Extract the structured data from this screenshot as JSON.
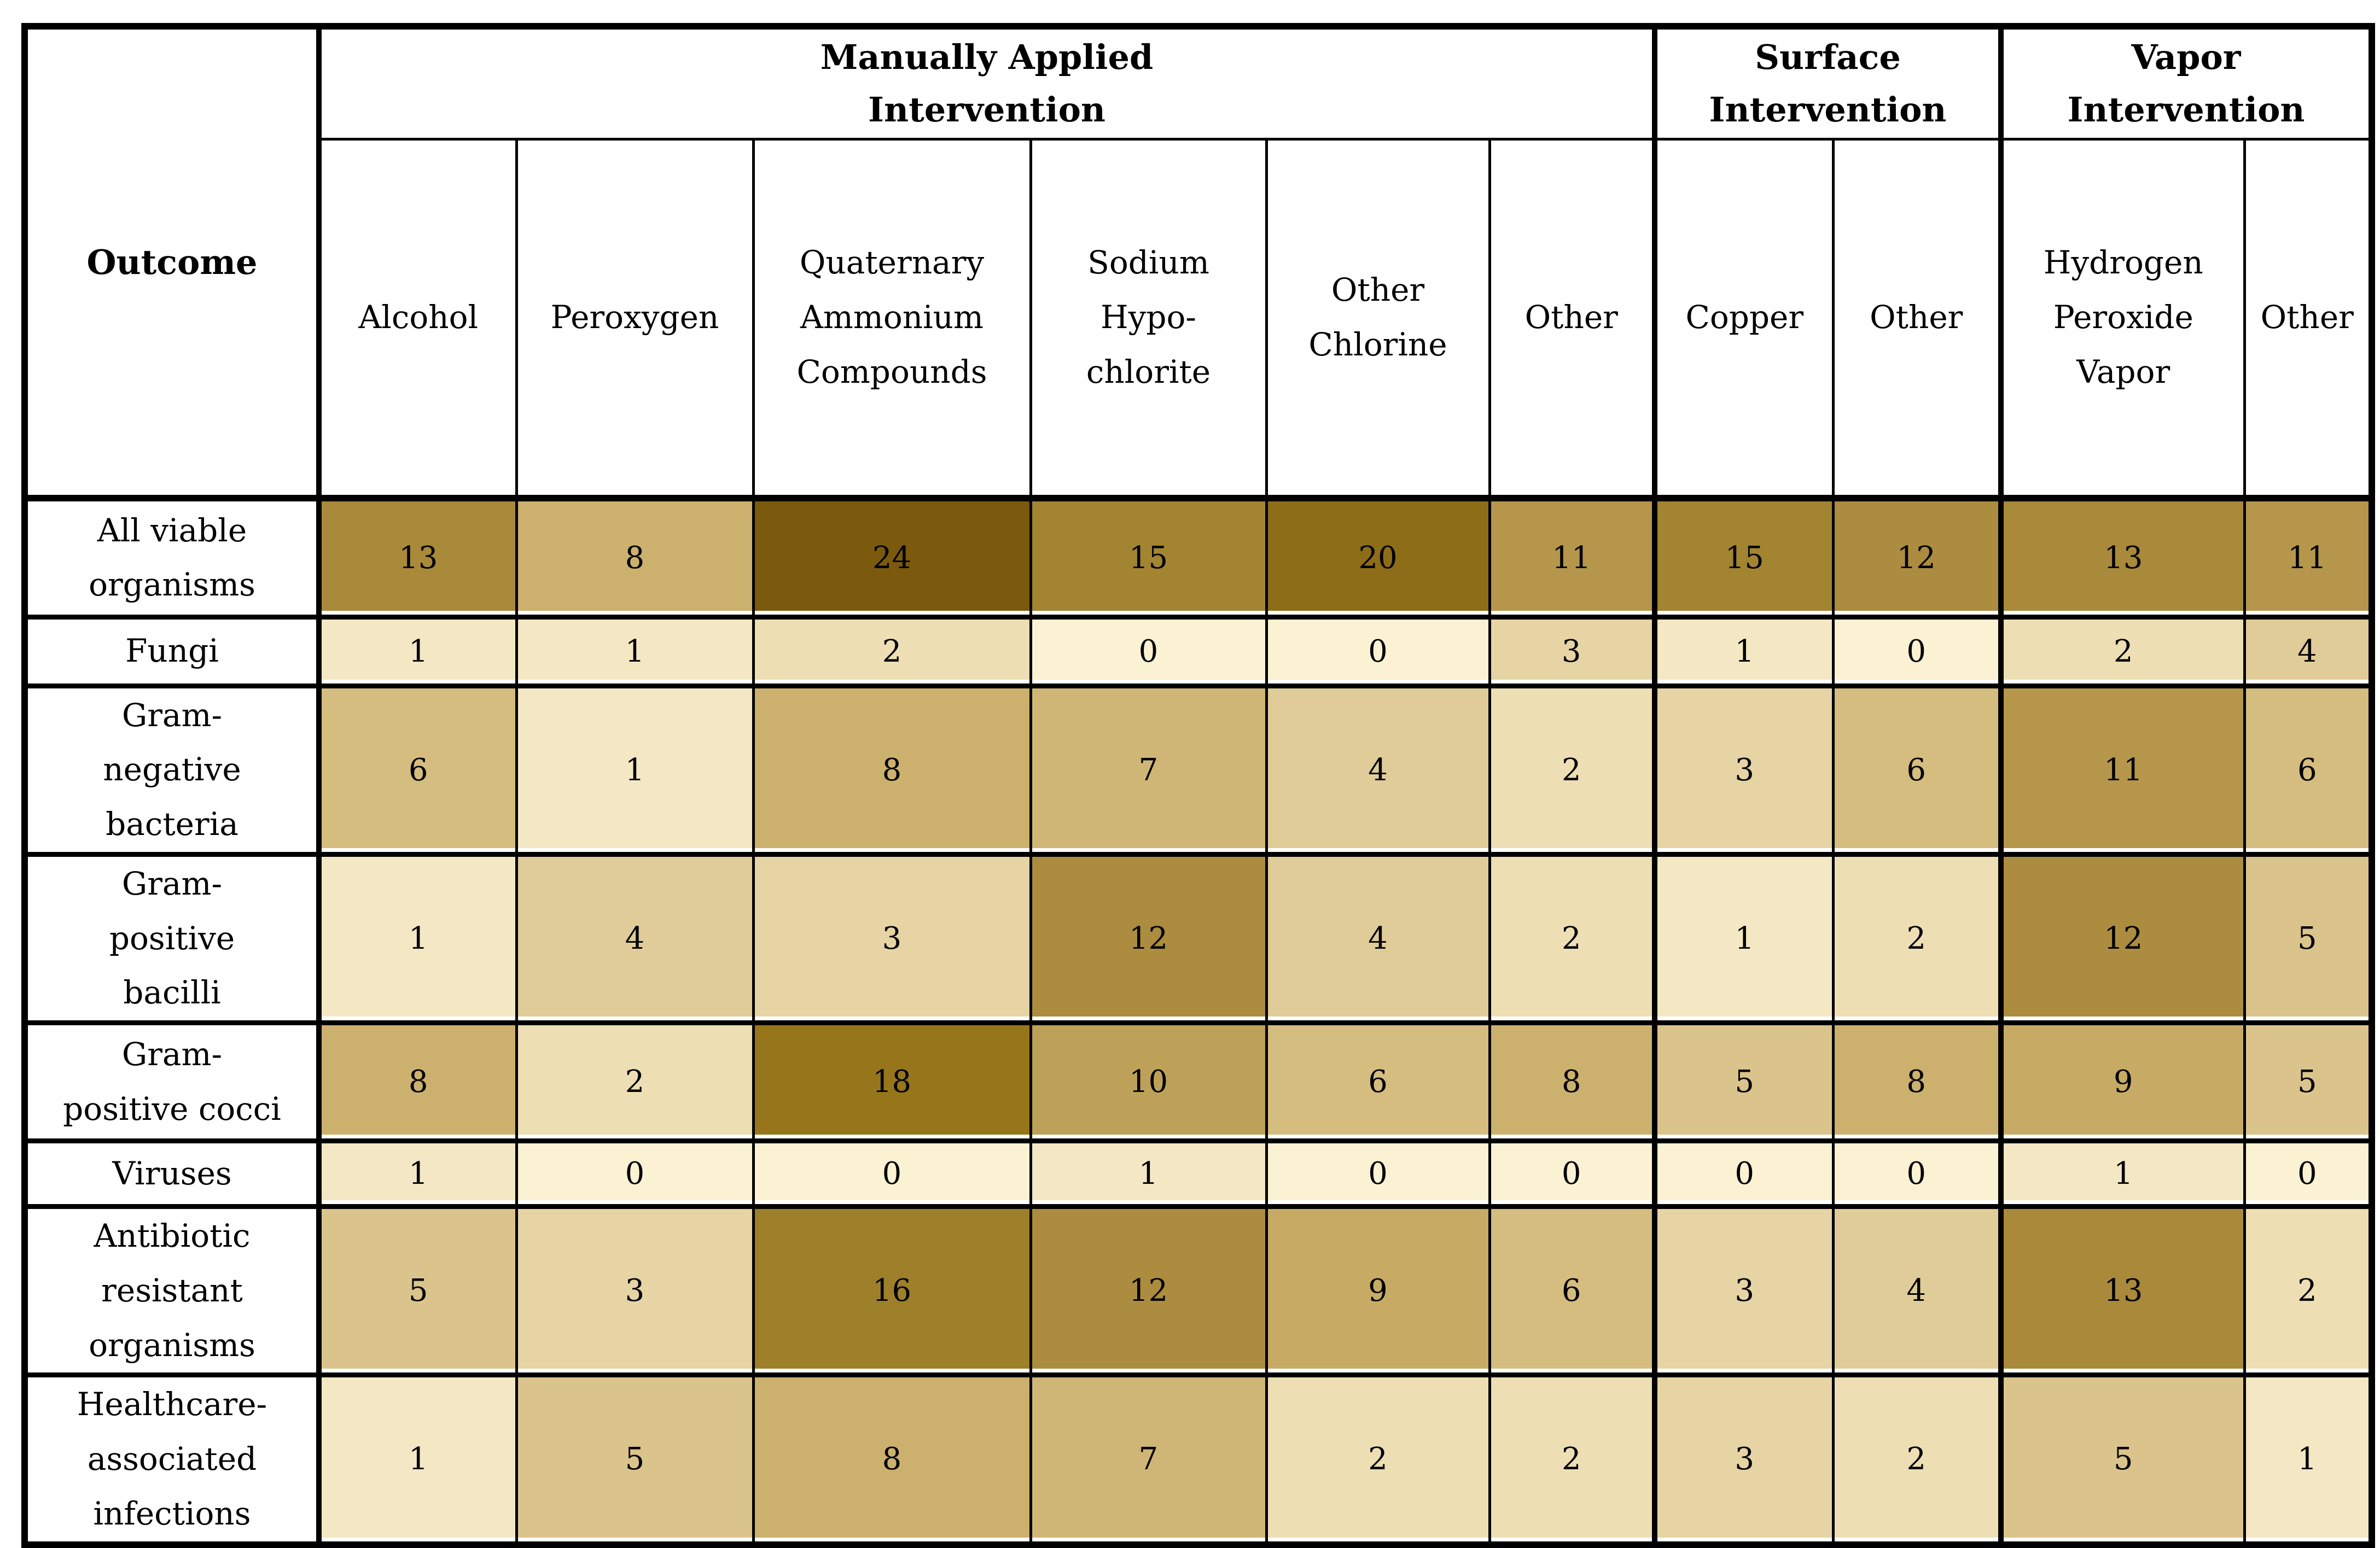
{
  "page": {
    "background": "#ffffff"
  },
  "table": {
    "corner_label": "Outcome"
  },
  "chart_data": {
    "type": "heatmap",
    "title": "",
    "corner_label": "Outcome",
    "column_groups": [
      {
        "label": "Manually Applied\nIntervention",
        "columns": [
          "Alcohol",
          "Peroxygen",
          "Quaternary\nAmmonium\nCompounds",
          "Sodium\nHypo-\nchlorite",
          "Other\nChlorine",
          "Other"
        ]
      },
      {
        "label": "Surface\nIntervention",
        "columns": [
          "Copper",
          "Other"
        ]
      },
      {
        "label": "Vapor Intervention",
        "columns": [
          "Hydrogen\nPeroxide\nVapor",
          "Other"
        ]
      }
    ],
    "rows": [
      "All viable\norganisms",
      "Fungi",
      "Gram-\nnegative\nbacteria",
      "Gram-\npositive\nbacilli",
      "Gram-\npositive cocci",
      "Viruses",
      "Antibiotic\nresistant\norganisms",
      "Healthcare-\nassociated\ninfections"
    ],
    "values": [
      [
        13,
        8,
        24,
        15,
        20,
        11,
        15,
        12,
        13,
        11
      ],
      [
        1,
        1,
        2,
        0,
        0,
        3,
        1,
        0,
        2,
        4
      ],
      [
        6,
        1,
        8,
        7,
        4,
        2,
        3,
        6,
        11,
        6
      ],
      [
        1,
        4,
        3,
        12,
        4,
        2,
        1,
        2,
        12,
        5
      ],
      [
        8,
        2,
        18,
        10,
        6,
        8,
        5,
        8,
        9,
        5
      ],
      [
        1,
        0,
        0,
        1,
        0,
        0,
        0,
        0,
        1,
        0
      ],
      [
        5,
        3,
        16,
        12,
        9,
        6,
        3,
        4,
        13,
        2
      ],
      [
        1,
        5,
        8,
        7,
        2,
        2,
        3,
        2,
        5,
        1
      ]
    ],
    "color_scale": {
      "min_value": 0,
      "max_value": 24,
      "stops": [
        {
          "value": 0,
          "color": "#FBF1D3"
        },
        {
          "value": 3,
          "color": "#E6D4A5"
        },
        {
          "value": 6,
          "color": "#D5BC7F"
        },
        {
          "value": 9,
          "color": "#C7AB65"
        },
        {
          "value": 12,
          "color": "#AC8C3E"
        },
        {
          "value": 15,
          "color": "#A28431"
        },
        {
          "value": 18,
          "color": "#97761B"
        },
        {
          "value": 21,
          "color": "#886817"
        },
        {
          "value": 24,
          "color": "#7B5A0D"
        }
      ],
      "text_color": "#000000",
      "grid_color": "#000000"
    },
    "legend": "none",
    "xlabel": "",
    "ylabel": "Outcome"
  }
}
